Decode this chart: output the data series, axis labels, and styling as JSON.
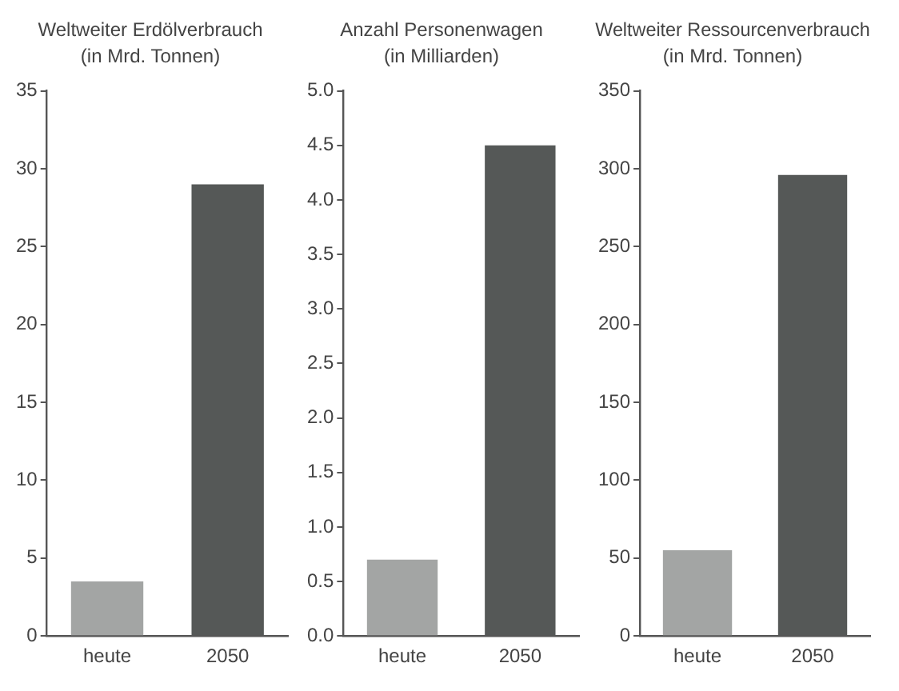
{
  "chart_data": [
    {
      "type": "bar",
      "title": "Weltweiter Erdölverbrauch",
      "subtitle": "(in Mrd. Tonnen)",
      "categories": [
        "heute",
        "2050"
      ],
      "values": [
        3.5,
        29
      ],
      "colors": [
        "#a3a5a4",
        "#555857"
      ],
      "ylim": [
        0,
        35
      ],
      "yticks": [
        0,
        5,
        10,
        15,
        20,
        25,
        30,
        35
      ],
      "grid": false
    },
    {
      "type": "bar",
      "title": "Anzahl Personenwagen",
      "subtitle": "(in Milliarden)",
      "categories": [
        "heute",
        "2050"
      ],
      "values": [
        0.7,
        4.5
      ],
      "colors": [
        "#a3a5a4",
        "#555857"
      ],
      "ylim": [
        0,
        5
      ],
      "yticks": [
        {
          "value": 0,
          "label": "0.0"
        },
        {
          "value": 0.5,
          "label": "0.5"
        },
        {
          "value": 1,
          "label": "1.0"
        },
        {
          "value": 1.5,
          "label": "1.5"
        },
        {
          "value": 2,
          "label": "2.0"
        },
        {
          "value": 2.5,
          "label": "2.5"
        },
        {
          "value": 3,
          "label": "3.0"
        },
        {
          "value": 3.5,
          "label": "3.5"
        },
        {
          "value": 4,
          "label": "4.0"
        },
        {
          "value": 4.5,
          "label": "4.5"
        },
        {
          "value": 5,
          "label": "5.0"
        }
      ],
      "grid": false
    },
    {
      "type": "bar",
      "title": "Weltweiter Ressourcenverbrauch",
      "subtitle": "(in Mrd. Tonnen)",
      "categories": [
        "heute",
        "2050"
      ],
      "values": [
        55,
        296
      ],
      "colors": [
        "#a3a5a4",
        "#555857"
      ],
      "ylim": [
        0,
        350
      ],
      "yticks": [
        0,
        50,
        100,
        150,
        200,
        250,
        300,
        350
      ],
      "grid": false
    }
  ]
}
